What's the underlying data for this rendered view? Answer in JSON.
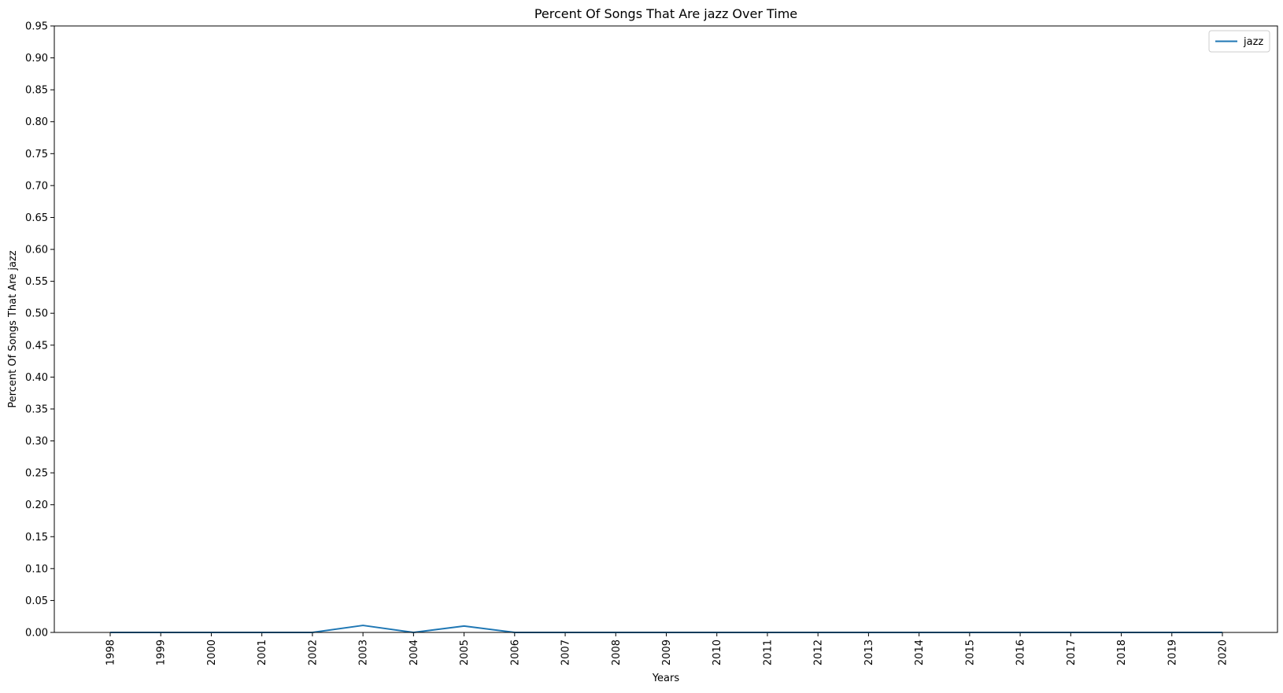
{
  "chart_data": {
    "type": "line",
    "title": "Percent Of Songs That Are jazz Over Time",
    "xlabel": "Years",
    "ylabel": "Percent Of Songs That Are jazz",
    "x": [
      "1998",
      "1999",
      "2000",
      "2001",
      "2002",
      "2003",
      "2004",
      "2005",
      "2006",
      "2007",
      "2008",
      "2009",
      "2010",
      "2011",
      "2012",
      "2013",
      "2014",
      "2015",
      "2016",
      "2017",
      "2018",
      "2019",
      "2020"
    ],
    "y_ticks": [
      "0.00",
      "0.05",
      "0.10",
      "0.15",
      "0.20",
      "0.25",
      "0.30",
      "0.35",
      "0.40",
      "0.45",
      "0.50",
      "0.55",
      "0.60",
      "0.65",
      "0.70",
      "0.75",
      "0.80",
      "0.85",
      "0.90",
      "0.95"
    ],
    "ylim": [
      0,
      0.95
    ],
    "grid": false,
    "legend_position": "top-right",
    "series": [
      {
        "name": "jazz",
        "color": "#1f77b4",
        "values": [
          0,
          0,
          0,
          0,
          0,
          0.011,
          0,
          0.01,
          0,
          0,
          0,
          0,
          0,
          0,
          0,
          0,
          0,
          0,
          0,
          0,
          0,
          0,
          0
        ]
      }
    ]
  }
}
